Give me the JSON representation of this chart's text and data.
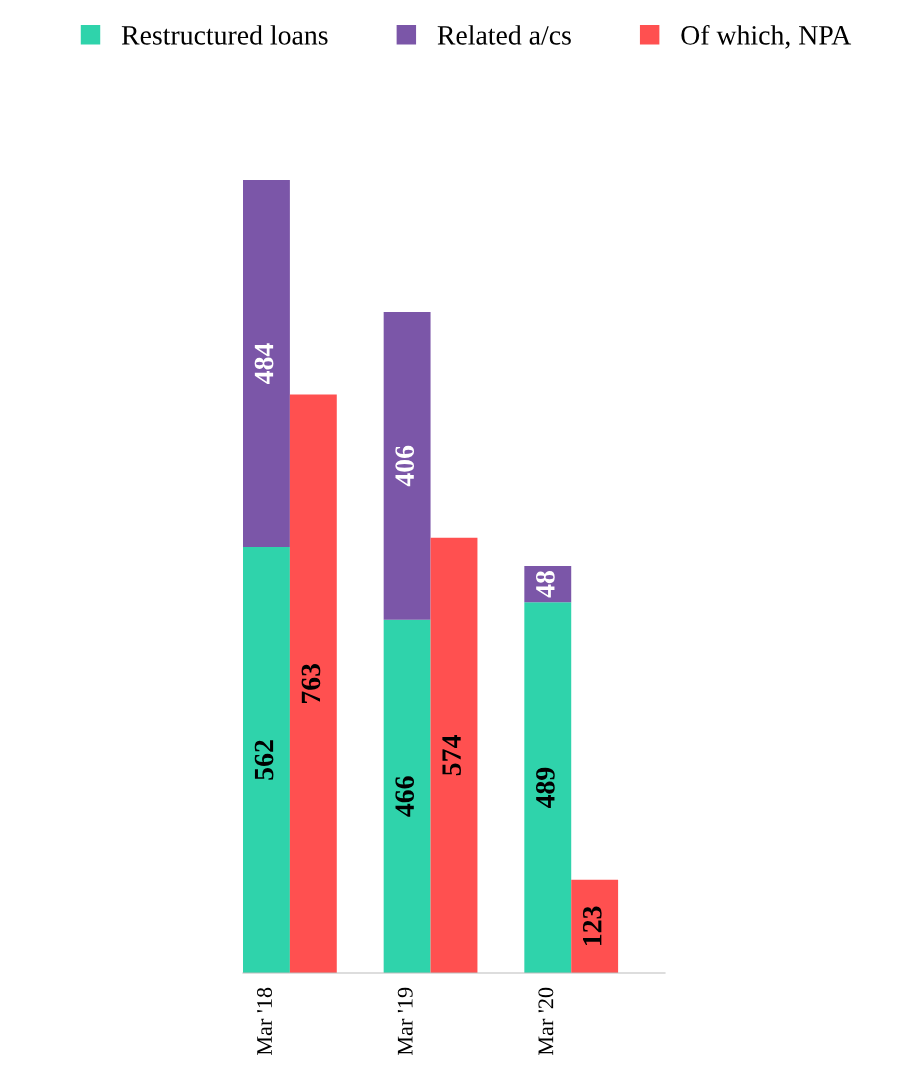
{
  "chart_data": {
    "type": "bar",
    "stacked": true,
    "categories": [
      "Mar '18",
      null,
      "Mar '19",
      null,
      "Mar '20",
      null
    ],
    "data_labels": true,
    "legend": "top",
    "tick_labels": "x",
    "grid": false,
    "series": [
      {
        "name": "Restructured loans",
        "color": "#2fd3ab",
        "values": [
          562,
          null,
          466,
          null,
          489,
          null
        ]
      },
      {
        "name": "Related a/cs",
        "color": "#7b56a8",
        "values": [
          484,
          null,
          406,
          null,
          48,
          null
        ]
      },
      {
        "name": "Of which, NPA",
        "color": "#ff5050",
        "values": [
          null,
          763,
          null,
          574,
          null,
          123
        ]
      }
    ]
  }
}
